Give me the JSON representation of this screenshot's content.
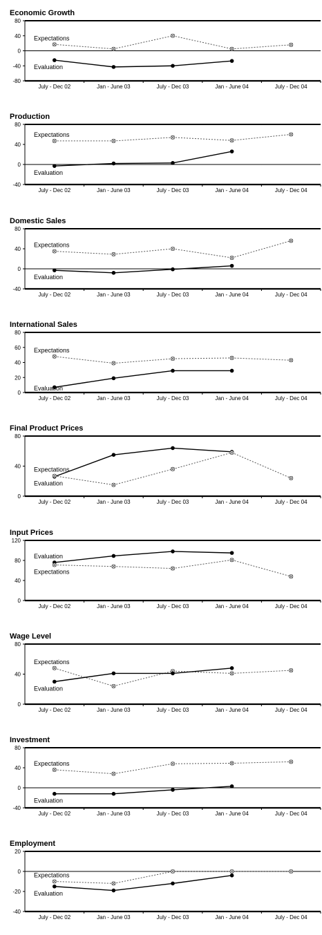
{
  "chart_data": [
    {
      "type": "line",
      "title": "Economic Growth",
      "categories": [
        "July - Dec 02",
        "Jan - June 03",
        "July - Dec 03",
        "Jan - June 04",
        "July - Dec 04"
      ],
      "ylim": [
        -80,
        80
      ],
      "yticks": [
        80,
        40,
        0,
        -40,
        -80
      ],
      "series": [
        {
          "name": "Expectations",
          "values": [
            17,
            5,
            40,
            5,
            16
          ]
        },
        {
          "name": "Evaluation",
          "values": [
            -25,
            -43,
            -40,
            -27,
            null
          ]
        }
      ]
    },
    {
      "type": "line",
      "title": "Production",
      "categories": [
        "July - Dec 02",
        "Jan - June 03",
        "July - Dec 03",
        "Jan - June 04",
        "July - Dec 04"
      ],
      "ylim": [
        -40,
        80
      ],
      "yticks": [
        80,
        40,
        0,
        -40
      ],
      "series": [
        {
          "name": "Expectations",
          "values": [
            47,
            47,
            54,
            48,
            60
          ]
        },
        {
          "name": "Evaluation",
          "values": [
            -3,
            2,
            3,
            26,
            null
          ]
        }
      ]
    },
    {
      "type": "line",
      "title": "Domestic Sales",
      "categories": [
        "July - Dec 02",
        "Jan - June 03",
        "July - Dec 03",
        "Jan - June 04",
        "July - Dec 04"
      ],
      "ylim": [
        -40,
        80
      ],
      "yticks": [
        80,
        40,
        0,
        -40
      ],
      "series": [
        {
          "name": "Expectations",
          "values": [
            35,
            29,
            40,
            22,
            56
          ]
        },
        {
          "name": "Evaluation",
          "values": [
            -3,
            -8,
            -1,
            6,
            null
          ]
        }
      ]
    },
    {
      "type": "line",
      "title": "International Sales",
      "categories": [
        "July - Dec 02",
        "Jan - June 03",
        "July - Dec 03",
        "Jan - June 04",
        "July - Dec 04"
      ],
      "ylim": [
        0,
        80
      ],
      "yticks": [
        80,
        60,
        40,
        20,
        0
      ],
      "series": [
        {
          "name": "Expectations",
          "values": [
            48,
            39,
            45,
            46,
            43
          ]
        },
        {
          "name": "Evaluation",
          "values": [
            7,
            19,
            29,
            29,
            null
          ]
        }
      ]
    },
    {
      "type": "line",
      "title": "Final Product Prices",
      "categories": [
        "July - Dec 02",
        "Jan - June 03",
        "July - Dec 03",
        "Jan - June 04",
        "July - Dec 04"
      ],
      "ylim": [
        0,
        80
      ],
      "yticks": [
        80,
        40,
        0
      ],
      "series": [
        {
          "name": "Evaluation",
          "values": [
            26,
            55,
            64,
            59,
            null
          ]
        },
        {
          "name": "Expectations",
          "values": [
            27,
            15,
            36,
            58,
            24
          ]
        }
      ]
    },
    {
      "type": "line",
      "title": "Input Prices",
      "categories": [
        "July - Dec 02",
        "Jan - June 03",
        "July - Dec 03",
        "Jan - June 04",
        "July - Dec 04"
      ],
      "ylim": [
        0,
        120
      ],
      "yticks": [
        120,
        80,
        40,
        0
      ],
      "series": [
        {
          "name": "Evaluation",
          "values": [
            76,
            89,
            98,
            95,
            null
          ]
        },
        {
          "name": "Expectations",
          "values": [
            71,
            68,
            64,
            81,
            48
          ]
        }
      ]
    },
    {
      "type": "line",
      "title": "Wage Level",
      "categories": [
        "July - Dec 02",
        "Jan - June 03",
        "July - Dec 03",
        "Jan - June 04",
        "July - Dec 04"
      ],
      "ylim": [
        0,
        80
      ],
      "yticks": [
        80,
        40,
        0
      ],
      "series": [
        {
          "name": "Expectations",
          "values": [
            48,
            24,
            44,
            41,
            45
          ]
        },
        {
          "name": "Evaluation",
          "values": [
            30,
            41,
            41,
            48,
            null
          ]
        }
      ]
    },
    {
      "type": "line",
      "title": "Investment",
      "categories": [
        "July - Dec 02",
        "Jan - June 03",
        "July - Dec 03",
        "Jan - June 04",
        "July - Dec 04"
      ],
      "ylim": [
        -40,
        80
      ],
      "yticks": [
        80,
        40,
        0,
        -40
      ],
      "series": [
        {
          "name": "Expectations",
          "values": [
            36,
            28,
            48,
            49,
            52
          ]
        },
        {
          "name": "Evaluation",
          "values": [
            -12,
            -12,
            -4,
            3,
            null
          ]
        }
      ]
    },
    {
      "type": "line",
      "title": "Employment",
      "categories": [
        "July - Dec 02",
        "Jan - June 03",
        "July - Dec 03",
        "Jan - June 04",
        "July - Dec 04"
      ],
      "ylim": [
        -40,
        20
      ],
      "yticks": [
        20,
        0,
        -20,
        -40
      ],
      "series": [
        {
          "name": "Expectations",
          "values": [
            -10,
            -12,
            0,
            0,
            0
          ]
        },
        {
          "name": "Evaluation",
          "values": [
            -15,
            -19,
            -12,
            -4,
            null
          ]
        }
      ]
    }
  ]
}
